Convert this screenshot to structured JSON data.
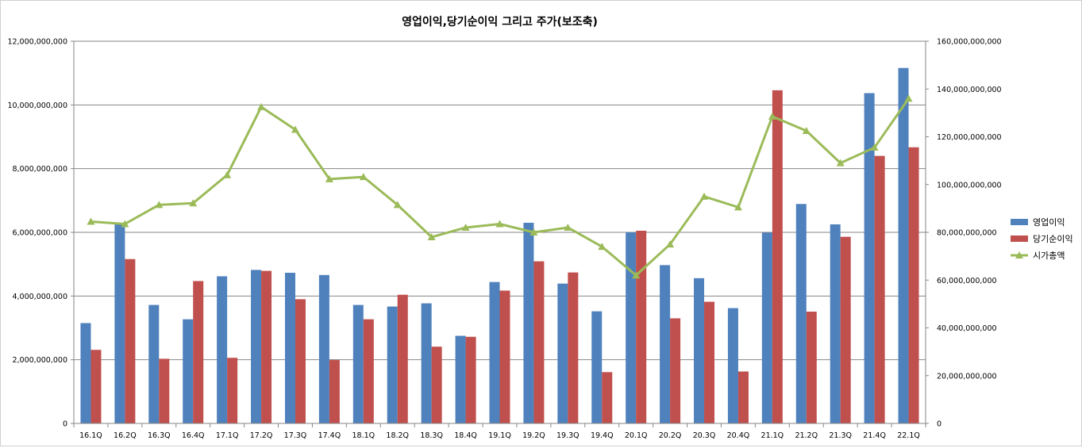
{
  "chart_data": {
    "type": "bar",
    "title": "영업이익,당기순이익 그리고 주가(보조축)",
    "categories": [
      "16.1Q",
      "16.2Q",
      "16.3Q",
      "16.4Q",
      "17.1Q",
      "17.2Q",
      "17.3Q",
      "17.4Q",
      "18.1Q",
      "18.2Q",
      "18.3Q",
      "18.4Q",
      "19.1Q",
      "19.2Q",
      "19.3Q",
      "19.4Q",
      "20.1Q",
      "20.2Q",
      "20.3Q",
      "20.4Q",
      "21.1Q",
      "21.2Q",
      "21.3Q",
      "21.4Q",
      "22.1Q"
    ],
    "series": [
      {
        "name": "영업이익",
        "type": "bar",
        "axis": "primary",
        "color": "#4F81BD",
        "values": [
          3150000000,
          6300000000,
          3720000000,
          3270000000,
          4620000000,
          4820000000,
          4730000000,
          4660000000,
          3720000000,
          3670000000,
          3770000000,
          2750000000,
          4440000000,
          6300000000,
          4390000000,
          3520000000,
          6000000000,
          4970000000,
          4560000000,
          3620000000,
          5990000000,
          6890000000,
          6250000000,
          10370000000,
          11160000000
        ]
      },
      {
        "name": "당기순이익",
        "type": "bar",
        "axis": "primary",
        "color": "#C0504D",
        "values": [
          2310000000,
          5160000000,
          2030000000,
          4470000000,
          2060000000,
          4790000000,
          3900000000,
          1990000000,
          3270000000,
          4040000000,
          2410000000,
          2720000000,
          4170000000,
          5090000000,
          4740000000,
          1610000000,
          6050000000,
          3300000000,
          3820000000,
          1630000000,
          10460000000,
          3510000000,
          5860000000,
          8400000000,
          8670000000
        ]
      },
      {
        "name": "시가총액",
        "type": "line",
        "axis": "secondary",
        "color": "#9BBB59",
        "values": [
          84500000000,
          83500000000,
          91500000000,
          92200000000,
          104000000000,
          132500000000,
          123000000000,
          102300000000,
          103200000000,
          91500000000,
          78000000000,
          82000000000,
          83500000000,
          80000000000,
          82000000000,
          74000000000,
          62000000000,
          75000000000,
          95000000000,
          90500000000,
          128500000000,
          122500000000,
          109000000000,
          115500000000,
          136000000000
        ]
      }
    ],
    "ylim": [
      0,
      12000000000
    ],
    "y2lim": [
      0,
      160000000000
    ],
    "yticks": [
      "0",
      "2,000,000,000",
      "4,000,000,000",
      "6,000,000,000",
      "8,000,000,000",
      "10,000,000,000",
      "12,000,000,000"
    ],
    "y2ticks": [
      "0",
      "20,000,000,000",
      "40,000,000,000",
      "60,000,000,000",
      "80,000,000,000",
      "100,000,000,000",
      "120,000,000,000",
      "140,000,000,000",
      "160,000,000,000"
    ],
    "grid": true,
    "legend_position": "right"
  }
}
